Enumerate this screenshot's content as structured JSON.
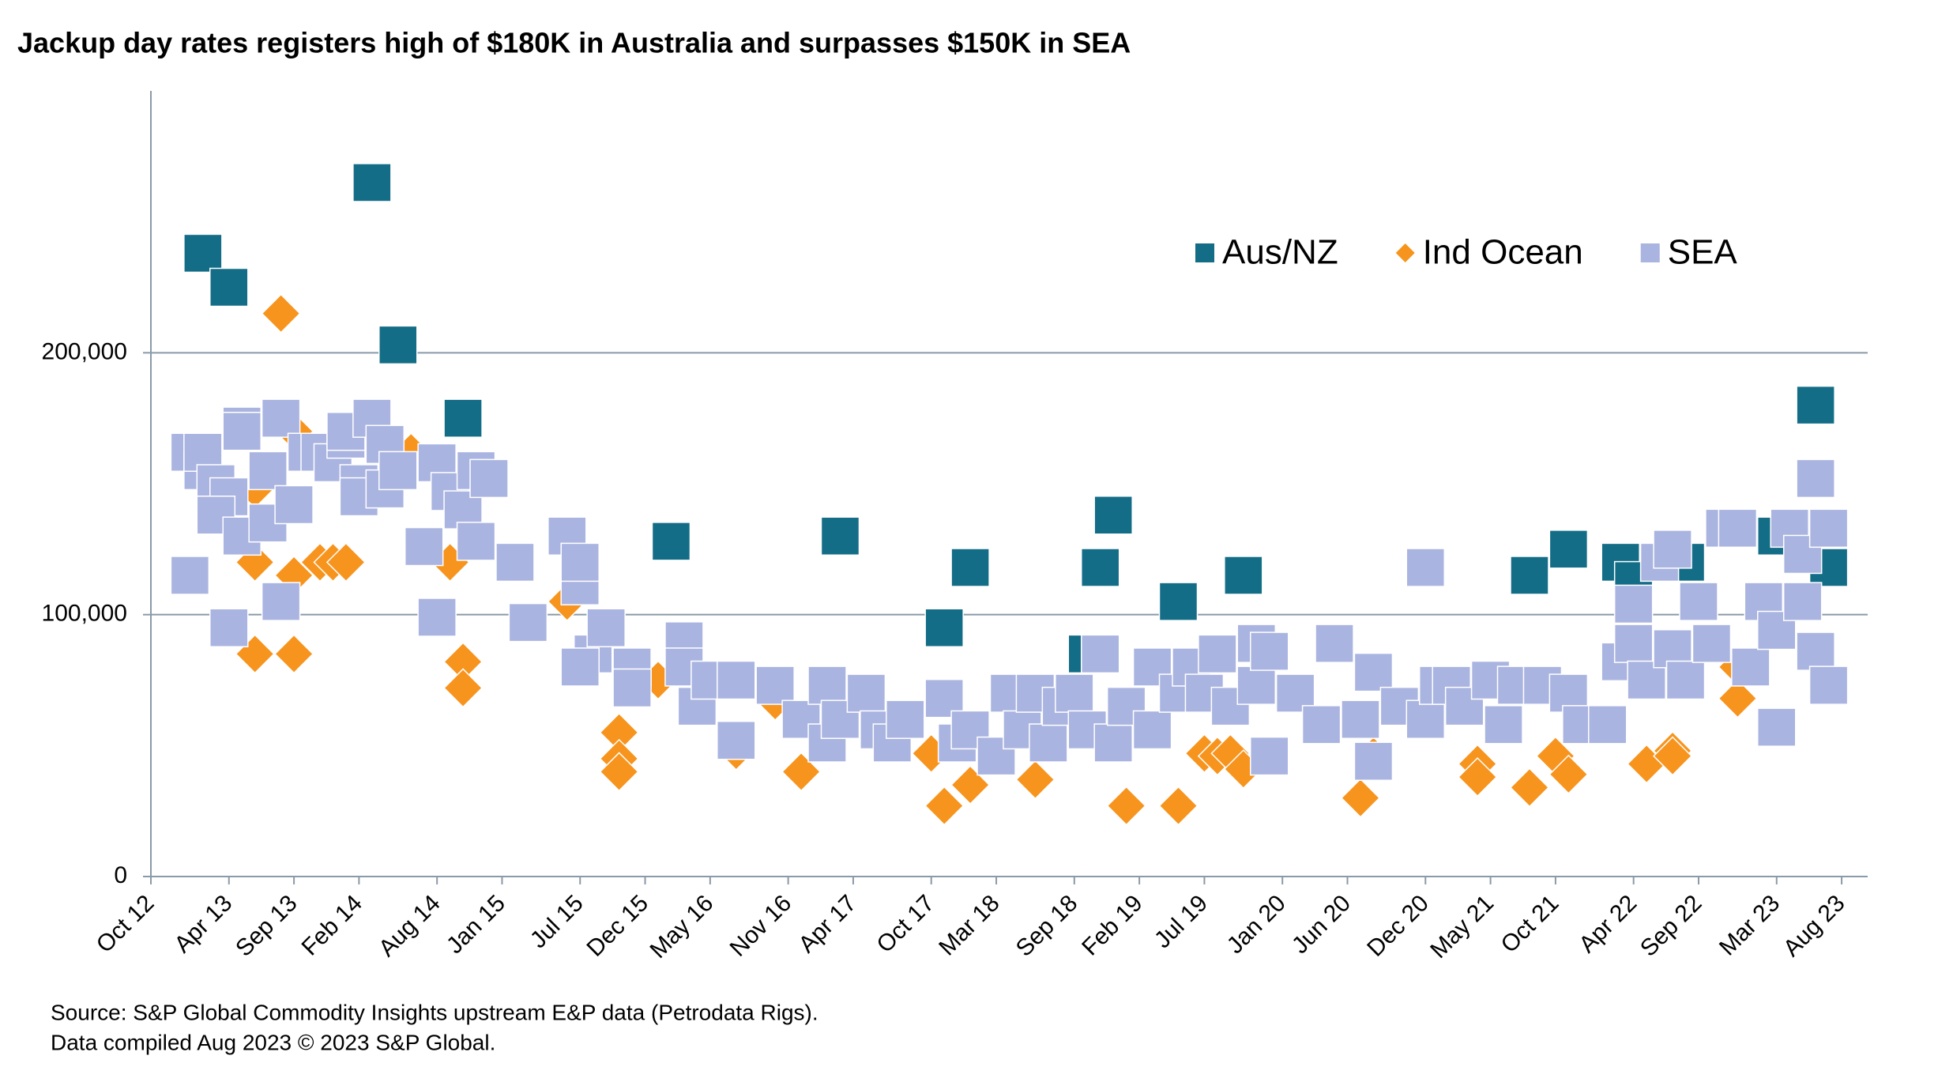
{
  "chart_data": {
    "type": "scatter",
    "title": "Jackup day rates registers high of $180K in Australia and surpasses $150K in SEA",
    "notes": [
      "Source: S&P Global Commodity Insights upstream E&P data (Petrodata Rigs).",
      "Data compiled Aug 2023 © 2023 S&P Global."
    ],
    "xlim": [
      "2012-10",
      "2023-10"
    ],
    "xticks": [
      {
        "value": "2012-10",
        "label": "Oct 12"
      },
      {
        "value": "2013-04",
        "label": "Apr 13"
      },
      {
        "value": "2013-09",
        "label": "Sep 13"
      },
      {
        "value": "2014-02",
        "label": "Feb 14"
      },
      {
        "value": "2014-08",
        "label": "Aug 14"
      },
      {
        "value": "2015-01",
        "label": "Jan 15"
      },
      {
        "value": "2015-07",
        "label": "Jul 15"
      },
      {
        "value": "2015-12",
        "label": "Dec 15"
      },
      {
        "value": "2016-05",
        "label": "May 16"
      },
      {
        "value": "2016-11",
        "label": "Nov 16"
      },
      {
        "value": "2017-04",
        "label": "Apr 17"
      },
      {
        "value": "2017-10",
        "label": "Oct 17"
      },
      {
        "value": "2018-03",
        "label": "Mar 18"
      },
      {
        "value": "2018-09",
        "label": "Sep 18"
      },
      {
        "value": "2019-02",
        "label": "Feb 19"
      },
      {
        "value": "2019-07",
        "label": "Jul 19"
      },
      {
        "value": "2020-01",
        "label": "Jan 20"
      },
      {
        "value": "2020-06",
        "label": "Jun 20"
      },
      {
        "value": "2020-12",
        "label": "Dec 20"
      },
      {
        "value": "2021-05",
        "label": "May 21"
      },
      {
        "value": "2021-10",
        "label": "Oct 21"
      },
      {
        "value": "2022-04",
        "label": "Apr 22"
      },
      {
        "value": "2022-09",
        "label": "Sep 22"
      },
      {
        "value": "2023-03",
        "label": "Mar 23"
      },
      {
        "value": "2023-08",
        "label": "Aug 23"
      }
    ],
    "ylim": [
      0,
      300000
    ],
    "yticks": [
      0,
      {
        "value": 100000,
        "label": "100,000"
      },
      {
        "value": 200000,
        "label": "200,000"
      }
    ],
    "grid": true,
    "legend": "upper-right",
    "series": [
      {
        "name": "Aus/NZ",
        "color": "#146d87",
        "marker": "square",
        "x": [
          "2013-02",
          "2013-04",
          "2014-03",
          "2014-05",
          "2014-10",
          "2016-02",
          "2017-03",
          "2017-11",
          "2018-01",
          "2018-10",
          "2018-11",
          "2018-12",
          "2019-05",
          "2019-10",
          "2021-08",
          "2021-11",
          "2022-03",
          "2022-04",
          "2022-08",
          "2023-03",
          "2023-06",
          "2023-07"
        ],
        "values": [
          238000,
          225000,
          265000,
          203000,
          175000,
          128000,
          130000,
          95000,
          118000,
          85000,
          118000,
          138000,
          105000,
          115000,
          115000,
          125000,
          120000,
          113000,
          120000,
          130000,
          180000,
          118000
        ]
      },
      {
        "name": "Ind Ocean",
        "color": "#f7941d",
        "marker": "diamond",
        "x": [
          "2013-08",
          "2013-09",
          "2013-06",
          "2013-06",
          "2013-09",
          "2013-09",
          "2013-11",
          "2013-12",
          "2014-01",
          "2013-06",
          "2014-06",
          "2014-09",
          "2014-10",
          "2014-10",
          "2015-06",
          "2015-10",
          "2015-10",
          "2015-10",
          "2016-01",
          "2016-07",
          "2016-10",
          "2016-12",
          "2017-10",
          "2017-11",
          "2018-01",
          "2018-06",
          "2019-01",
          "2019-05",
          "2019-07",
          "2019-08",
          "2019-09",
          "2019-10",
          "2020-07",
          "2020-08",
          "2021-04",
          "2021-04",
          "2021-08",
          "2021-10",
          "2021-11",
          "2022-05",
          "2022-07",
          "2022-07",
          "2022-12",
          "2022-12"
        ],
        "values": [
          215000,
          170000,
          120000,
          85000,
          85000,
          115000,
          120000,
          120000,
          120000,
          148000,
          162000,
          120000,
          82000,
          72000,
          105000,
          55000,
          45000,
          40000,
          75000,
          48000,
          67000,
          40000,
          47000,
          27000,
          35000,
          37000,
          27000,
          27000,
          47000,
          46000,
          47000,
          41000,
          30000,
          46000,
          43000,
          38000,
          34000,
          46000,
          39000,
          43000,
          48000,
          46000,
          80000,
          68000
        ]
      },
      {
        "name": "SEA",
        "color": "#aab4e0",
        "marker": "square",
        "x": [
          "2013-01",
          "2013-01",
          "2013-02",
          "2013-02",
          "2013-03",
          "2013-04",
          "2013-04",
          "2013-05",
          "2013-05",
          "2013-03",
          "2013-05",
          "2013-07",
          "2013-07",
          "2013-08",
          "2013-08",
          "2013-09",
          "2013-10",
          "2013-11",
          "2013-12",
          "2014-01",
          "2014-01",
          "2014-02",
          "2014-02",
          "2014-03",
          "2014-04",
          "2014-04",
          "2014-05",
          "2014-07",
          "2014-08",
          "2014-08",
          "2014-09",
          "2014-10",
          "2014-11",
          "2014-11",
          "2014-12",
          "2015-02",
          "2015-03",
          "2015-06",
          "2015-07",
          "2015-07",
          "2015-08",
          "2015-07",
          "2015-09",
          "2015-11",
          "2015-11",
          "2016-03",
          "2016-03",
          "2016-04",
          "2016-05",
          "2016-07",
          "2016-07",
          "2016-10",
          "2016-12",
          "2017-02",
          "2017-02",
          "2017-03",
          "2017-05",
          "2017-06",
          "2017-07",
          "2017-08",
          "2017-11",
          "2017-12",
          "2018-01",
          "2018-03",
          "2018-04",
          "2018-05",
          "2018-06",
          "2018-07",
          "2018-08",
          "2018-09",
          "2018-10",
          "2018-11",
          "2018-12",
          "2019-01",
          "2019-03",
          "2019-03",
          "2019-05",
          "2019-06",
          "2019-07",
          "2019-08",
          "2019-09",
          "2019-11",
          "2019-11",
          "2019-12",
          "2019-12",
          "2020-02",
          "2020-04",
          "2020-05",
          "2020-07",
          "2020-08",
          "2020-08",
          "2020-10",
          "2020-12",
          "2020-12",
          "2021-01",
          "2021-02",
          "2021-03",
          "2021-05",
          "2021-06",
          "2021-07",
          "2021-09",
          "2021-11",
          "2021-12",
          "2022-02",
          "2022-03",
          "2022-04",
          "2022-04",
          "2022-05",
          "2022-06",
          "2022-07",
          "2022-07",
          "2022-08",
          "2022-09",
          "2022-10",
          "2022-11",
          "2022-12",
          "2023-01",
          "2023-02",
          "2023-03",
          "2023-03",
          "2023-04",
          "2023-05",
          "2023-05",
          "2023-06",
          "2023-06",
          "2023-07",
          "2023-07"
        ],
        "values": [
          115000,
          162000,
          155000,
          162000,
          150000,
          145000,
          95000,
          172000,
          170000,
          138000,
          130000,
          135000,
          155000,
          105000,
          175000,
          142000,
          162000,
          162000,
          158000,
          167000,
          170000,
          150000,
          145000,
          175000,
          165000,
          148000,
          155000,
          126000,
          99000,
          158000,
          147000,
          140000,
          155000,
          128000,
          152000,
          120000,
          97000,
          130000,
          111000,
          120000,
          85000,
          80000,
          95000,
          80000,
          72000,
          90000,
          80000,
          65000,
          75000,
          52000,
          75000,
          73000,
          60000,
          73000,
          51000,
          60000,
          70000,
          56000,
          51000,
          60000,
          68000,
          51000,
          56000,
          46000,
          70000,
          56000,
          70000,
          51000,
          65000,
          70000,
          56000,
          85000,
          51000,
          65000,
          80000,
          56000,
          70000,
          80000,
          70000,
          85000,
          65000,
          89000,
          73000,
          46000,
          86000,
          70000,
          58000,
          89000,
          60000,
          78000,
          44000,
          65000,
          60000,
          118000,
          73000,
          73000,
          65000,
          75000,
          58000,
          73000,
          73000,
          70000,
          58000,
          58000,
          82000,
          89000,
          104000,
          75000,
          120000,
          87000,
          125000,
          75000,
          105000,
          89000,
          133000,
          133000,
          80000,
          105000,
          57000,
          94000,
          133000,
          123000,
          105000,
          86000,
          152000,
          133000,
          73000
        ]
      }
    ]
  }
}
